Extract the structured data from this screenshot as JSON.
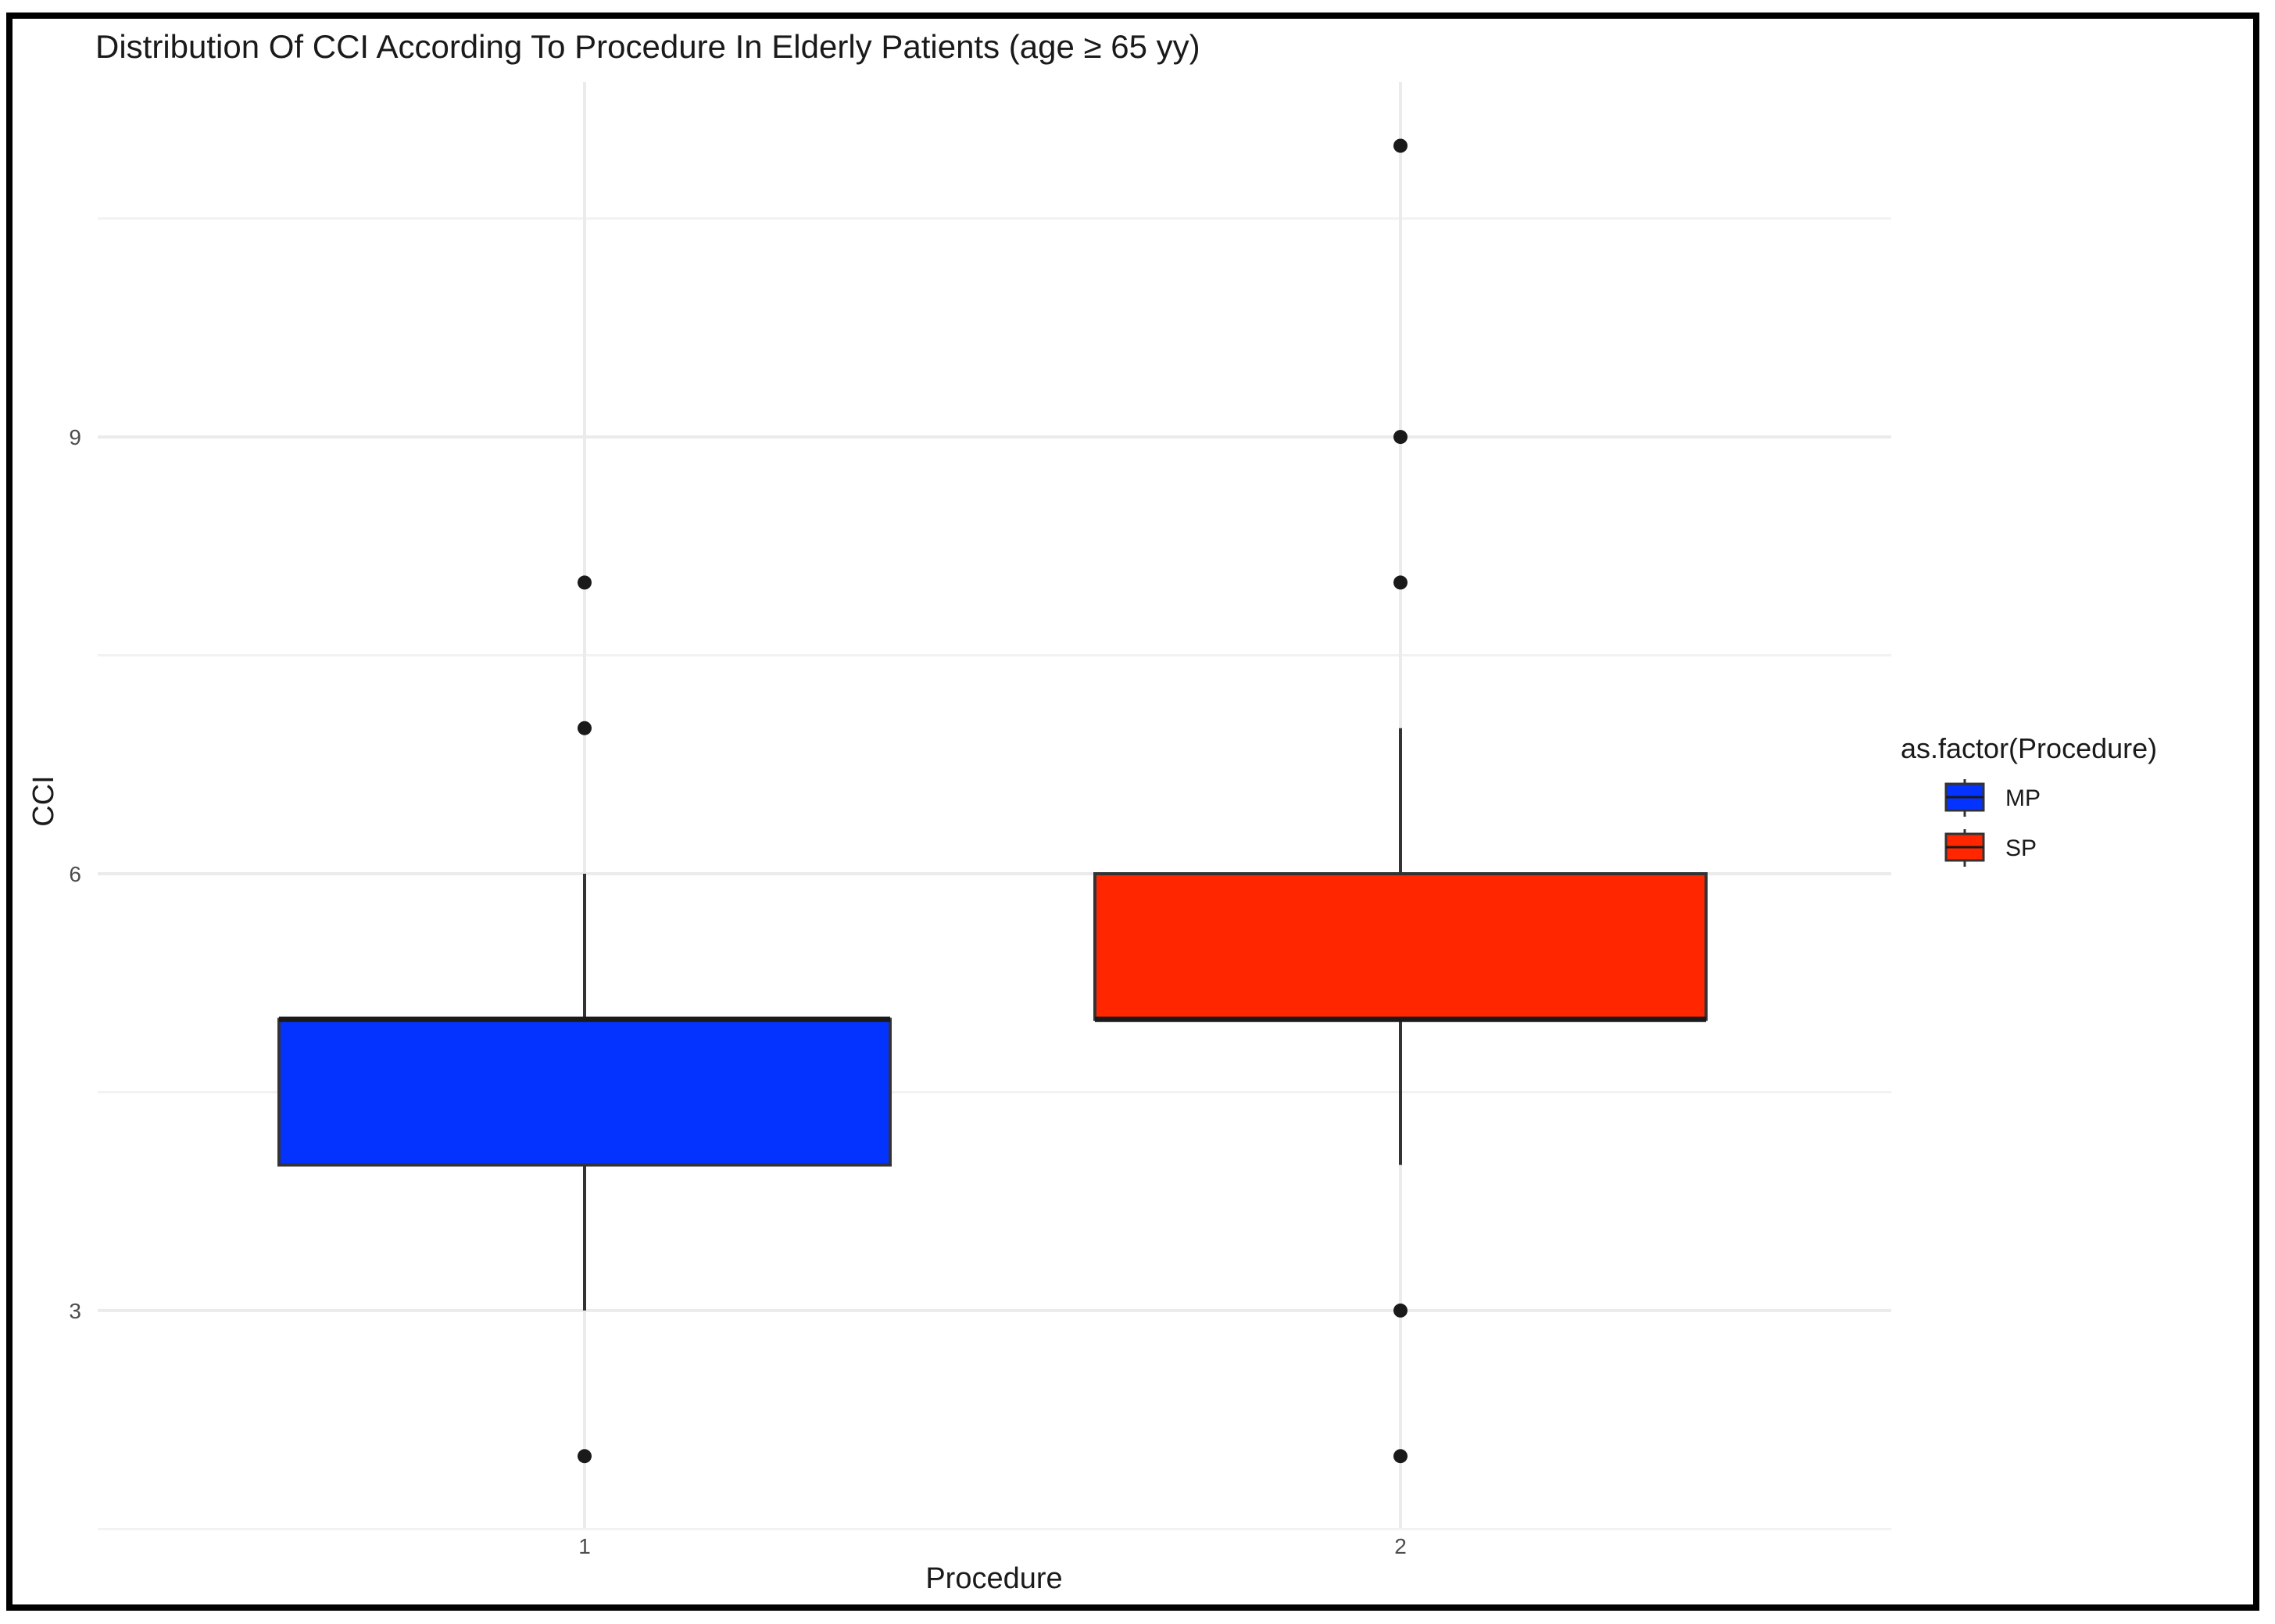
{
  "chart_data": {
    "type": "boxplot",
    "title": "Distribution Of CCI According To Procedure In Elderly Patients (age ≥ 65 yy)",
    "xlabel": "Procedure",
    "ylabel": "CCI",
    "categories": [
      "1",
      "2"
    ],
    "y_ticks": [
      3,
      6,
      9
    ],
    "ylim": [
      1.7,
      11.5
    ],
    "grid": true,
    "legend": {
      "title": "as.factor(Procedure)",
      "placement": "right",
      "entries": [
        {
          "label": "MP",
          "color": "#0433FF"
        },
        {
          "label": "SP",
          "color": "#FF2600"
        }
      ]
    },
    "series": [
      {
        "category": "1",
        "legend": "MP",
        "color": "#0433FF",
        "whisker_low": 3,
        "q1": 4,
        "median": 5,
        "q3": 5,
        "whisker_high": 6,
        "outliers": [
          2,
          7,
          8
        ]
      },
      {
        "category": "2",
        "legend": "SP",
        "color": "#FF2600",
        "whisker_low": 4,
        "q1": 5,
        "median": 5,
        "q3": 6,
        "whisker_high": 7,
        "outliers": [
          2,
          3,
          8,
          9,
          11
        ]
      }
    ]
  }
}
